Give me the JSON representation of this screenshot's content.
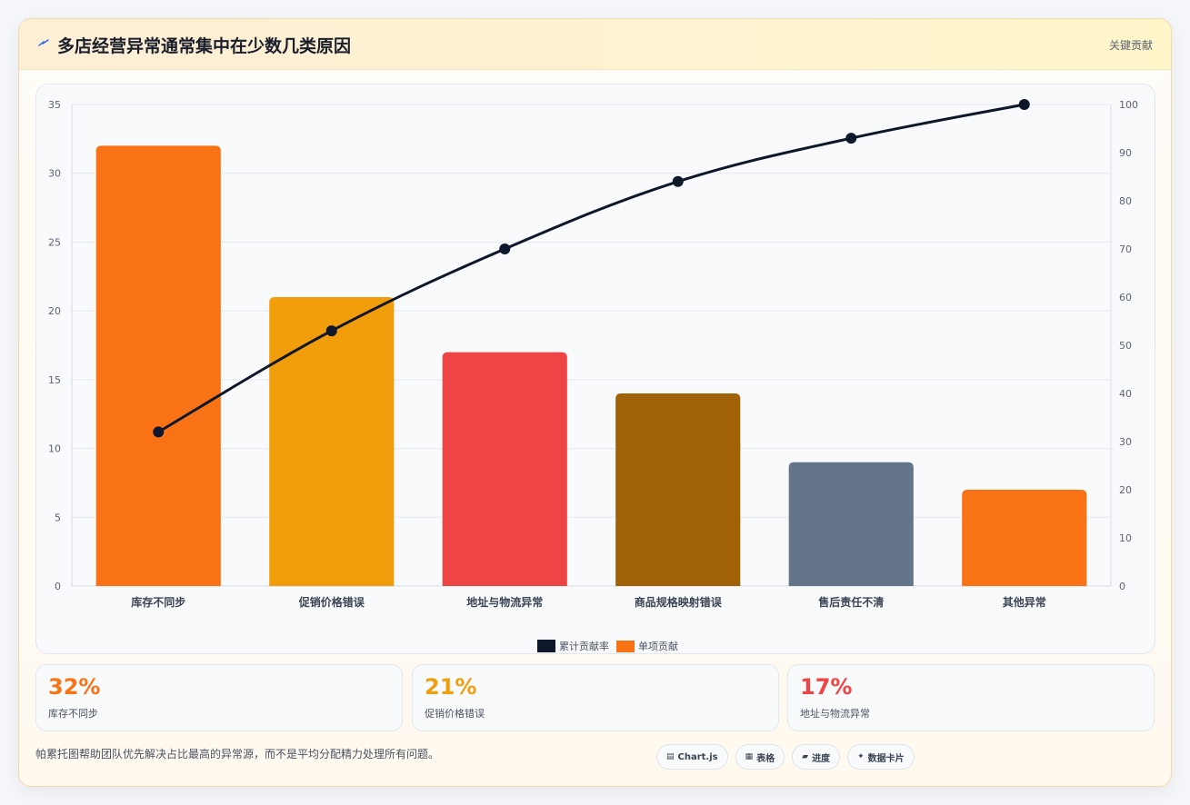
{
  "header": {
    "title": "多店经营异常通常集中在少数几类原因",
    "tag": "关键贡献",
    "icon": "bolt-icon"
  },
  "chart_data": {
    "type": "bar",
    "categories": [
      "库存不同步",
      "促销价格错误",
      "地址与物流异常",
      "商品规格映射错误",
      "售后责任不清",
      "其他异常"
    ],
    "series": [
      {
        "name": "单项贡献",
        "type": "bar",
        "axis": "left",
        "values": [
          32,
          21,
          17,
          14,
          9,
          7
        ]
      },
      {
        "name": "累计贡献率",
        "type": "line",
        "axis": "right",
        "values": [
          32,
          53,
          70,
          84,
          93,
          100
        ]
      }
    ],
    "ylim": [
      0,
      35
    ],
    "y_ticks": [
      0,
      5,
      10,
      15,
      20,
      25,
      30,
      35
    ],
    "y2lim": [
      0,
      100
    ],
    "y2_ticks": [
      0,
      10,
      20,
      30,
      40,
      50,
      60,
      70,
      80,
      90,
      100
    ],
    "bar_colors": [
      "#f97316",
      "#f29e0c",
      "#ef4444",
      "#a16207",
      "#64748b",
      "#f97316"
    ],
    "line_color": "#0f172a",
    "legend": {
      "position": "bottom",
      "items": [
        "累计贡献率",
        "单项贡献"
      ]
    },
    "grid": true
  },
  "legend_labels": {
    "line": "累计贡献率",
    "bar": "单项贡献"
  },
  "stats": [
    {
      "value": "32%",
      "label": "库存不同步",
      "color": "#f97316"
    },
    {
      "value": "21%",
      "label": "促销价格错误",
      "color": "#f29e0c"
    },
    {
      "value": "17%",
      "label": "地址与物流异常",
      "color": "#ef4444"
    }
  ],
  "footer": {
    "note": "帕累托图帮助团队优先解决占比最高的异常源，而不是平均分配精力处理所有问题。",
    "chips": [
      {
        "icon": "▤",
        "label": "Chart.js"
      },
      {
        "icon": "▦",
        "label": "表格"
      },
      {
        "icon": "▰",
        "label": "进度"
      },
      {
        "icon": "✦",
        "label": "数据卡片"
      }
    ]
  }
}
